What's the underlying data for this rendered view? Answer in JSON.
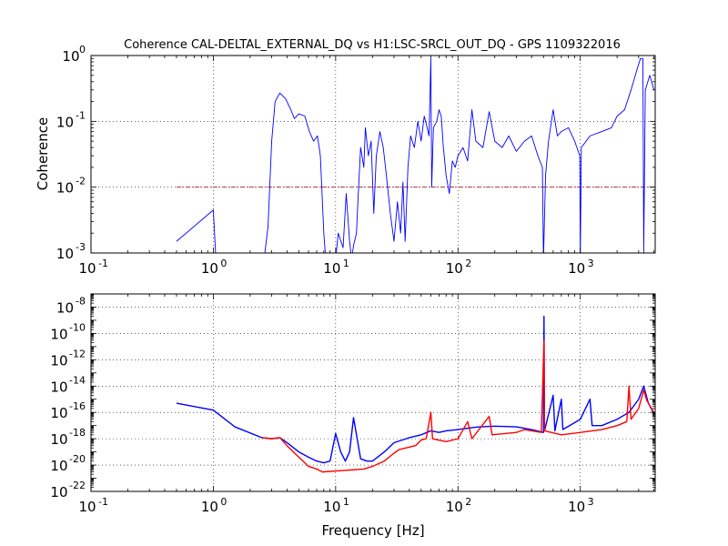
{
  "title": "Coherence CAL-DELTAL_EXTERNAL_DQ vs H1:LSC-SRCL_OUT_DQ - GPS 1109322016",
  "xlabel": "Frequency [Hz]",
  "top_ylabel": "Coherence",
  "colors": {
    "blue": "#0000ff",
    "red": "#ff0000",
    "threshold": "#b03030",
    "grid": "#000000"
  },
  "chart_data": [
    {
      "type": "line",
      "xscale": "log",
      "yscale": "log",
      "xlim": [
        0.1,
        4096
      ],
      "ylim": [
        0.001,
        1
      ],
      "ylabel": "Coherence",
      "grid": true,
      "xticks": [
        0.1,
        1,
        10,
        100,
        1000
      ],
      "yticks": [
        0.001,
        0.01,
        0.1,
        1
      ],
      "threshold": {
        "y": 0.01,
        "style": "dash-dot"
      },
      "series": [
        {
          "color": "#0000ff",
          "points": [
            [
              0.5,
              0.0015
            ],
            [
              1.0,
              0.0045
            ],
            [
              1.05,
              0.0008
            ],
            [
              2.6,
              0.0008
            ],
            [
              2.8,
              0.0025
            ],
            [
              3.0,
              0.05
            ],
            [
              3.2,
              0.2
            ],
            [
              3.5,
              0.27
            ],
            [
              3.9,
              0.22
            ],
            [
              4.3,
              0.15
            ],
            [
              4.6,
              0.11
            ],
            [
              5.0,
              0.13
            ],
            [
              5.6,
              0.12
            ],
            [
              6.1,
              0.07
            ],
            [
              6.6,
              0.05
            ],
            [
              7.1,
              0.06
            ],
            [
              7.5,
              0.03
            ],
            [
              8.0,
              0.002
            ],
            [
              8.3,
              0.0008
            ],
            [
              10.0,
              0.0008
            ],
            [
              10.5,
              0.002
            ],
            [
              11.5,
              0.0012
            ],
            [
              12.2,
              0.008
            ],
            [
              13.0,
              0.0015
            ],
            [
              13.5,
              0.0008
            ],
            [
              14.0,
              0.0013
            ],
            [
              14.8,
              0.002
            ],
            [
              15.2,
              0.006
            ],
            [
              16.0,
              0.04
            ],
            [
              17.0,
              0.02
            ],
            [
              17.5,
              0.08
            ],
            [
              18.5,
              0.03
            ],
            [
              19.5,
              0.05
            ],
            [
              20.5,
              0.004
            ],
            [
              21.5,
              0.03
            ],
            [
              23.0,
              0.07
            ],
            [
              24.5,
              0.04
            ],
            [
              26.0,
              0.015
            ],
            [
              28.0,
              0.004
            ],
            [
              30.0,
              0.0015
            ],
            [
              32.0,
              0.006
            ],
            [
              34.0,
              0.002
            ],
            [
              35.5,
              0.012
            ],
            [
              37.0,
              0.0015
            ],
            [
              39.0,
              0.02
            ],
            [
              41.0,
              0.06
            ],
            [
              44.0,
              0.04
            ],
            [
              47.0,
              0.1
            ],
            [
              50.0,
              0.05
            ],
            [
              53.0,
              0.12
            ],
            [
              56.0,
              0.08
            ],
            [
              58.0,
              0.06
            ],
            [
              60.0,
              0.9
            ],
            [
              61.0,
              0.01
            ],
            [
              63.0,
              0.08
            ],
            [
              67.0,
              0.1
            ],
            [
              70.0,
              0.15
            ],
            [
              73.0,
              0.12
            ],
            [
              76.0,
              0.04
            ],
            [
              80.0,
              0.015
            ],
            [
              85.0,
              0.008
            ],
            [
              90.0,
              0.025
            ],
            [
              95.0,
              0.02
            ],
            [
              100.0,
              0.03
            ],
            [
              110.0,
              0.04
            ],
            [
              120.0,
              0.025
            ],
            [
              130.0,
              0.15
            ],
            [
              140.0,
              0.05
            ],
            [
              160.0,
              0.04
            ],
            [
              180.0,
              0.14
            ],
            [
              200.0,
              0.05
            ],
            [
              230.0,
              0.04
            ],
            [
              260.0,
              0.06
            ],
            [
              300.0,
              0.035
            ],
            [
              350.0,
              0.05
            ],
            [
              400.0,
              0.06
            ],
            [
              450.0,
              0.03
            ],
            [
              490.0,
              0.02
            ],
            [
              500.0,
              0.0008
            ],
            [
              520.0,
              0.015
            ],
            [
              550.0,
              0.05
            ],
            [
              600.0,
              0.15
            ],
            [
              650.0,
              0.06
            ],
            [
              700.0,
              0.07
            ],
            [
              800.0,
              0.08
            ],
            [
              900.0,
              0.05
            ],
            [
              990.0,
              0.03
            ],
            [
              1000.0,
              0.0008
            ],
            [
              1020.0,
              0.04
            ],
            [
              1200.0,
              0.06
            ],
            [
              1500.0,
              0.07
            ],
            [
              1800.0,
              0.08
            ],
            [
              2000.0,
              0.12
            ],
            [
              2300.0,
              0.15
            ],
            [
              2600.0,
              0.3
            ],
            [
              2900.0,
              0.6
            ],
            [
              3100.0,
              0.9
            ],
            [
              3250.0,
              0.9
            ],
            [
              3300.0,
              0.001
            ],
            [
              3400.0,
              0.3
            ],
            [
              3700.0,
              0.5
            ],
            [
              4000.0,
              0.3
            ]
          ]
        }
      ]
    },
    {
      "type": "line",
      "xscale": "log",
      "yscale": "log",
      "xlim": [
        0.1,
        4096
      ],
      "ylim": [
        1e-22,
        1e-07
      ],
      "xlabel": "Frequency [Hz]",
      "grid": true,
      "xticks": [
        0.1,
        1,
        10,
        100,
        1000
      ],
      "yticks": [
        1e-22,
        1e-20,
        1e-18,
        1e-16,
        1e-14,
        1e-12,
        1e-10,
        1e-08
      ],
      "series": [
        {
          "color": "#0000ff",
          "points": [
            [
              0.5,
              5e-16
            ],
            [
              1.0,
              1.5e-16
            ],
            [
              1.5,
              8e-18
            ],
            [
              2.5,
              1.2e-18
            ],
            [
              3.0,
              1e-18
            ],
            [
              3.5,
              1.2e-18
            ],
            [
              4.0,
              5e-19
            ],
            [
              5.0,
              1e-19
            ],
            [
              6.0,
              4e-20
            ],
            [
              7.0,
              2e-20
            ],
            [
              8.0,
              1.5e-20
            ],
            [
              9.0,
              2e-20
            ],
            [
              10.0,
              2.5e-18
            ],
            [
              11.0,
              1e-19
            ],
            [
              12.0,
              2e-20
            ],
            [
              13.0,
              1e-19
            ],
            [
              14.0,
              4e-17
            ],
            [
              15.0,
              1e-18
            ],
            [
              16.0,
              3e-20
            ],
            [
              18.0,
              2e-20
            ],
            [
              20.0,
              2e-20
            ],
            [
              25.0,
              1e-19
            ],
            [
              30.0,
              5e-19
            ],
            [
              40.0,
              1.2e-18
            ],
            [
              50.0,
              2e-18
            ],
            [
              60.0,
              4e-18
            ],
            [
              70.0,
              3e-18
            ],
            [
              80.0,
              4e-18
            ],
            [
              100.0,
              5e-18
            ],
            [
              130.0,
              7e-18
            ],
            [
              150.0,
              8e-18
            ],
            [
              200.0,
              9e-18
            ],
            [
              300.0,
              8e-18
            ],
            [
              400.0,
              5e-18
            ],
            [
              500.0,
              3e-18
            ],
            [
              505.0,
              2e-09
            ],
            [
              510.0,
              4e-18
            ],
            [
              600.0,
              2e-15
            ],
            [
              620.0,
              4e-18
            ],
            [
              700.0,
              1e-15
            ],
            [
              720.0,
              5e-18
            ],
            [
              1000.0,
              3e-17
            ],
            [
              1200.0,
              1e-15
            ],
            [
              1250.0,
              1e-17
            ],
            [
              1500.0,
              1e-17
            ],
            [
              2000.0,
              3e-17
            ],
            [
              2500.0,
              1e-16
            ],
            [
              3000.0,
              1e-15
            ],
            [
              3300.0,
              1e-14
            ],
            [
              3600.0,
              5e-16
            ],
            [
              4000.0,
              8e-17
            ]
          ]
        },
        {
          "color": "#ff0000",
          "points": [
            [
              2.5,
              1.2e-18
            ],
            [
              3.0,
              1e-18
            ],
            [
              3.5,
              1.2e-18
            ],
            [
              4.0,
              3e-19
            ],
            [
              5.0,
              4e-20
            ],
            [
              6.0,
              8e-21
            ],
            [
              7.0,
              5e-21
            ],
            [
              7.8,
              3e-21
            ],
            [
              17.0,
              5e-21
            ],
            [
              20.0,
              8e-21
            ],
            [
              25.0,
              2e-20
            ],
            [
              30.0,
              8e-20
            ],
            [
              33.0,
              1.5e-19
            ],
            [
              45.0,
              3e-19
            ],
            [
              50.0,
              8e-19
            ],
            [
              55.0,
              1e-18
            ],
            [
              60.0,
              1e-16
            ],
            [
              62.0,
              1e-18
            ],
            [
              80.0,
              6e-19
            ],
            [
              100.0,
              1e-18
            ],
            [
              120.0,
              2e-17
            ],
            [
              130.0,
              1e-18
            ],
            [
              180.0,
              5e-17
            ],
            [
              190.0,
              2e-18
            ],
            [
              300.0,
              3e-18
            ],
            [
              350.0,
              5e-18
            ],
            [
              400.0,
              4e-18
            ],
            [
              480.0,
              3e-18
            ],
            [
              505.0,
              3e-11
            ],
            [
              510.0,
              4e-18
            ],
            [
              700.0,
              2e-18
            ],
            [
              1000.0,
              3e-18
            ],
            [
              1500.0,
              5e-18
            ],
            [
              2000.0,
              1e-17
            ],
            [
              2400.0,
              2e-17
            ],
            [
              2500.0,
              1e-14
            ],
            [
              2600.0,
              3e-17
            ],
            [
              3000.0,
              2e-16
            ],
            [
              3300.0,
              5e-15
            ],
            [
              3500.0,
              8e-16
            ],
            [
              4000.0,
              1e-16
            ]
          ]
        }
      ]
    }
  ]
}
